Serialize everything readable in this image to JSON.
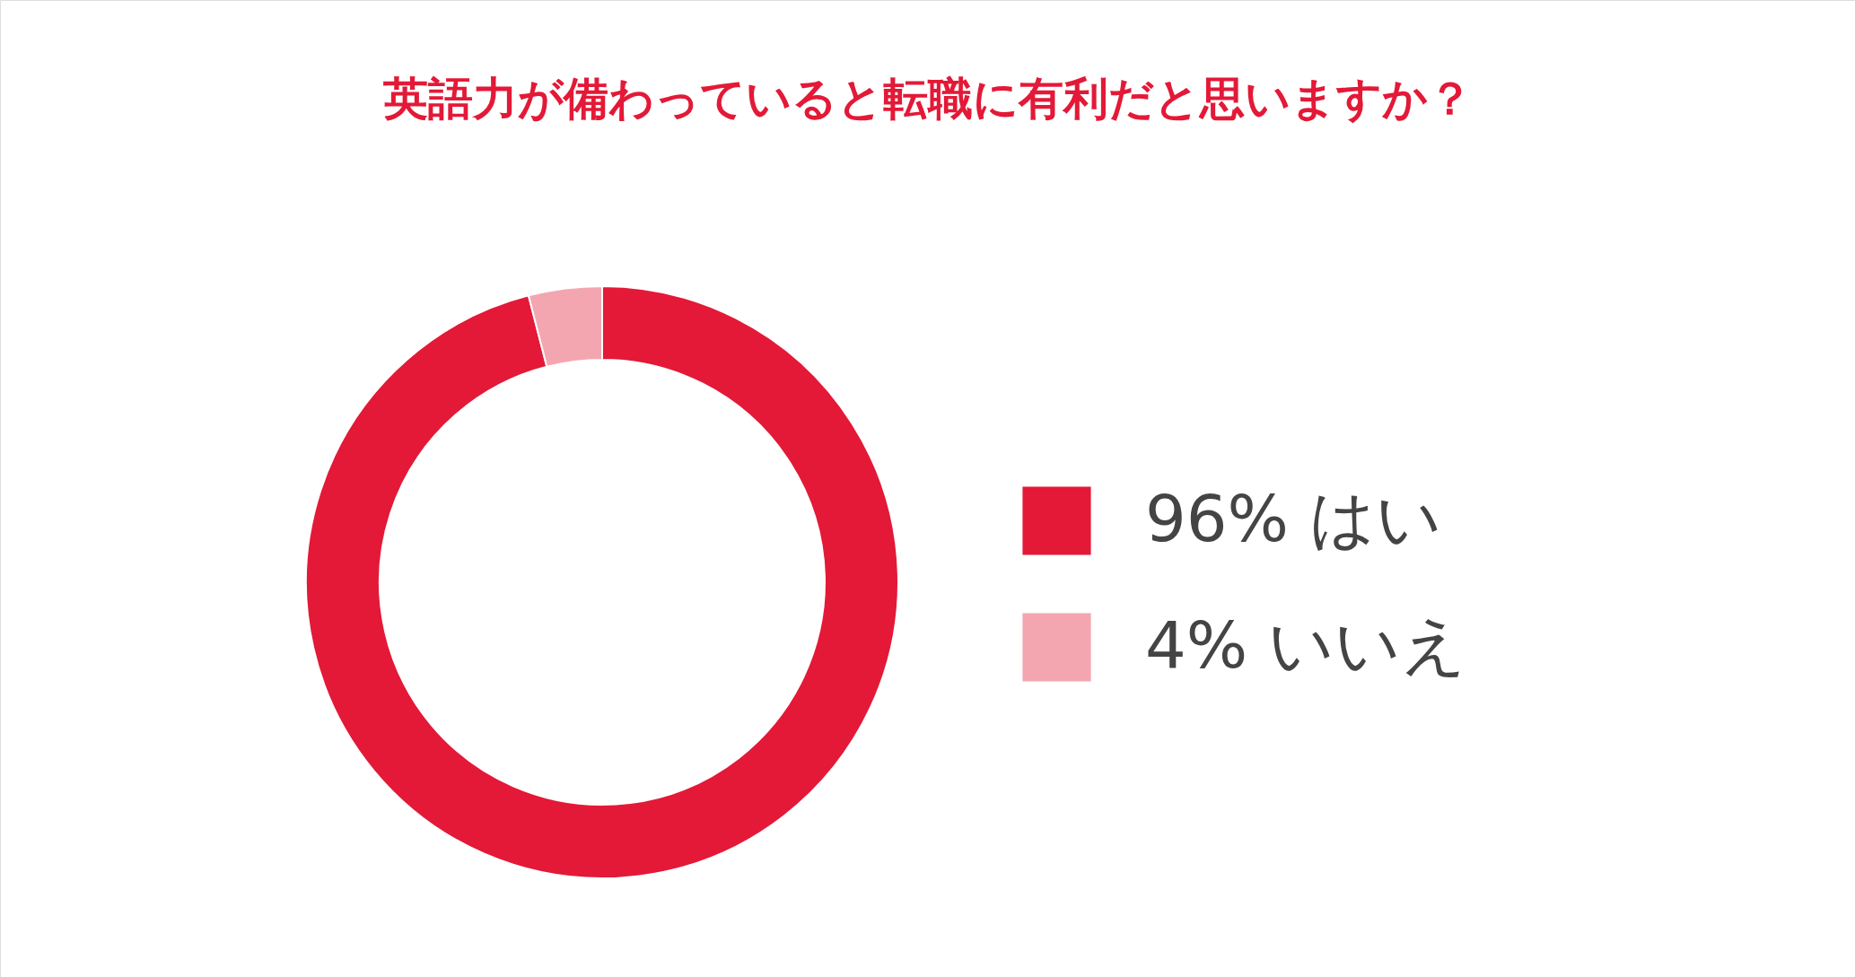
{
  "chart_data": {
    "type": "donut",
    "title": "英語力が備わっていると転職に有利だと思いますか？",
    "categories": [
      "はい",
      "いいえ"
    ],
    "values": [
      96,
      4
    ],
    "colors": [
      "#e31937",
      "#f4a6b0"
    ],
    "value_labels": [
      "96%",
      "4%"
    ],
    "legend": "right"
  }
}
